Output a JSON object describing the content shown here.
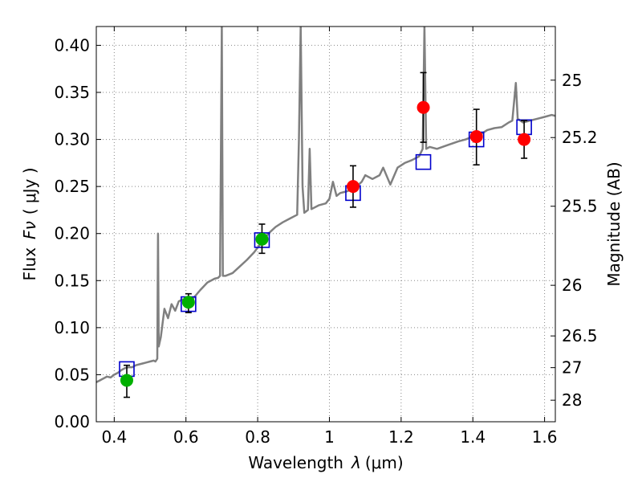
{
  "chart_data": {
    "type": "scatter",
    "xlabel_prefix": "Wavelength",
    "xlabel_symbol": "λ",
    "xlabel_unit": "(μm)",
    "ylabel_prefix": "Flux",
    "ylabel_symbol": "Fν",
    "ylabel_unit": "( μJy )",
    "y2label": "Magnitude (AB)",
    "xlim": [
      0.35,
      1.63
    ],
    "ylim": [
      0.0,
      0.42
    ],
    "grid": true,
    "x_ticks": [
      0.4,
      0.6,
      0.8,
      1.0,
      1.2,
      1.4,
      1.6
    ],
    "x_tick_labels": [
      "0.4",
      "0.6",
      "0.8",
      "1",
      "1.2",
      "1.4",
      "1.6"
    ],
    "y_ticks": [
      0.0,
      0.05,
      0.1,
      0.15,
      0.2,
      0.25,
      0.3,
      0.35,
      0.4
    ],
    "y_tick_labels": [
      "0.00",
      "0.05",
      "0.10",
      "0.15",
      "0.20",
      "0.25",
      "0.30",
      "0.35",
      "0.40"
    ],
    "mag_ticks": [
      {
        "flux": 0.363,
        "label": "25"
      },
      {
        "flux": 0.302,
        "label": "25.2"
      },
      {
        "flux": 0.229,
        "label": "25.5"
      },
      {
        "flux": 0.145,
        "label": "26"
      },
      {
        "flux": 0.0912,
        "label": "26.5"
      },
      {
        "flux": 0.0575,
        "label": "27"
      },
      {
        "flux": 0.0229,
        "label": "28"
      }
    ],
    "colors": {
      "spectrum": "#808080",
      "model_box": "#0000cc",
      "green": "#00b000",
      "red": "#ff0000",
      "grid": "#888888"
    },
    "spectrum": [
      [
        0.35,
        0.042
      ],
      [
        0.36,
        0.044
      ],
      [
        0.37,
        0.046
      ],
      [
        0.38,
        0.048
      ],
      [
        0.39,
        0.047
      ],
      [
        0.4,
        0.05
      ],
      [
        0.41,
        0.052
      ],
      [
        0.42,
        0.055
      ],
      [
        0.43,
        0.057
      ],
      [
        0.44,
        0.058
      ],
      [
        0.45,
        0.058
      ],
      [
        0.46,
        0.06
      ],
      [
        0.47,
        0.061
      ],
      [
        0.48,
        0.062
      ],
      [
        0.49,
        0.063
      ],
      [
        0.5,
        0.064
      ],
      [
        0.51,
        0.065
      ],
      [
        0.515,
        0.064
      ],
      [
        0.52,
        0.067
      ],
      [
        0.522,
        0.2
      ],
      [
        0.524,
        0.08
      ],
      [
        0.53,
        0.09
      ],
      [
        0.54,
        0.12
      ],
      [
        0.55,
        0.11
      ],
      [
        0.56,
        0.125
      ],
      [
        0.57,
        0.118
      ],
      [
        0.58,
        0.128
      ],
      [
        0.59,
        0.13
      ],
      [
        0.6,
        0.125
      ],
      [
        0.62,
        0.131
      ],
      [
        0.64,
        0.14
      ],
      [
        0.66,
        0.148
      ],
      [
        0.68,
        0.152
      ],
      [
        0.69,
        0.153
      ],
      [
        0.695,
        0.155
      ],
      [
        0.7,
        0.42
      ],
      [
        0.703,
        0.155
      ],
      [
        0.71,
        0.155
      ],
      [
        0.73,
        0.158
      ],
      [
        0.75,
        0.165
      ],
      [
        0.77,
        0.172
      ],
      [
        0.79,
        0.18
      ],
      [
        0.81,
        0.19
      ],
      [
        0.83,
        0.2
      ],
      [
        0.85,
        0.207
      ],
      [
        0.87,
        0.212
      ],
      [
        0.89,
        0.216
      ],
      [
        0.91,
        0.22
      ],
      [
        0.915,
        0.3
      ],
      [
        0.92,
        0.42
      ],
      [
        0.925,
        0.25
      ],
      [
        0.93,
        0.222
      ],
      [
        0.94,
        0.225
      ],
      [
        0.945,
        0.29
      ],
      [
        0.95,
        0.226
      ],
      [
        0.97,
        0.23
      ],
      [
        0.99,
        0.232
      ],
      [
        1.0,
        0.237
      ],
      [
        1.01,
        0.255
      ],
      [
        1.02,
        0.24
      ],
      [
        1.03,
        0.243
      ],
      [
        1.05,
        0.245
      ],
      [
        1.07,
        0.248
      ],
      [
        1.09,
        0.255
      ],
      [
        1.1,
        0.262
      ],
      [
        1.12,
        0.258
      ],
      [
        1.14,
        0.262
      ],
      [
        1.15,
        0.27
      ],
      [
        1.17,
        0.252
      ],
      [
        1.19,
        0.27
      ],
      [
        1.21,
        0.275
      ],
      [
        1.23,
        0.278
      ],
      [
        1.25,
        0.282
      ],
      [
        1.26,
        0.29
      ],
      [
        1.265,
        0.42
      ],
      [
        1.27,
        0.29
      ],
      [
        1.28,
        0.292
      ],
      [
        1.3,
        0.29
      ],
      [
        1.33,
        0.294
      ],
      [
        1.36,
        0.298
      ],
      [
        1.38,
        0.3
      ],
      [
        1.4,
        0.303
      ],
      [
        1.42,
        0.305
      ],
      [
        1.44,
        0.31
      ],
      [
        1.46,
        0.312
      ],
      [
        1.48,
        0.313
      ],
      [
        1.5,
        0.318
      ],
      [
        1.51,
        0.32
      ],
      [
        1.52,
        0.36
      ],
      [
        1.525,
        0.322
      ],
      [
        1.54,
        0.318
      ],
      [
        1.56,
        0.32
      ],
      [
        1.58,
        0.322
      ],
      [
        1.6,
        0.324
      ],
      [
        1.62,
        0.326
      ],
      [
        1.63,
        0.325
      ]
    ],
    "model_points": [
      {
        "x": 0.435,
        "y": 0.056
      },
      {
        "x": 0.607,
        "y": 0.125
      },
      {
        "x": 0.812,
        "y": 0.193
      },
      {
        "x": 1.066,
        "y": 0.243
      },
      {
        "x": 1.262,
        "y": 0.276
      },
      {
        "x": 1.41,
        "y": 0.3
      },
      {
        "x": 1.543,
        "y": 0.313
      }
    ],
    "observed_points": [
      {
        "x": 0.435,
        "y": 0.044,
        "err_low": 0.026,
        "err_high": 0.06,
        "color": "green"
      },
      {
        "x": 0.607,
        "y": 0.127,
        "err_low": 0.116,
        "err_high": 0.136,
        "color": "green"
      },
      {
        "x": 0.812,
        "y": 0.194,
        "err_low": 0.179,
        "err_high": 0.21,
        "color": "green"
      },
      {
        "x": 1.066,
        "y": 0.25,
        "err_low": 0.228,
        "err_high": 0.272,
        "color": "red"
      },
      {
        "x": 1.262,
        "y": 0.334,
        "err_low": 0.297,
        "err_high": 0.371,
        "color": "red"
      },
      {
        "x": 1.41,
        "y": 0.303,
        "err_low": 0.273,
        "err_high": 0.332,
        "color": "red"
      },
      {
        "x": 1.543,
        "y": 0.3,
        "err_low": 0.28,
        "err_high": 0.32,
        "color": "red"
      }
    ]
  }
}
